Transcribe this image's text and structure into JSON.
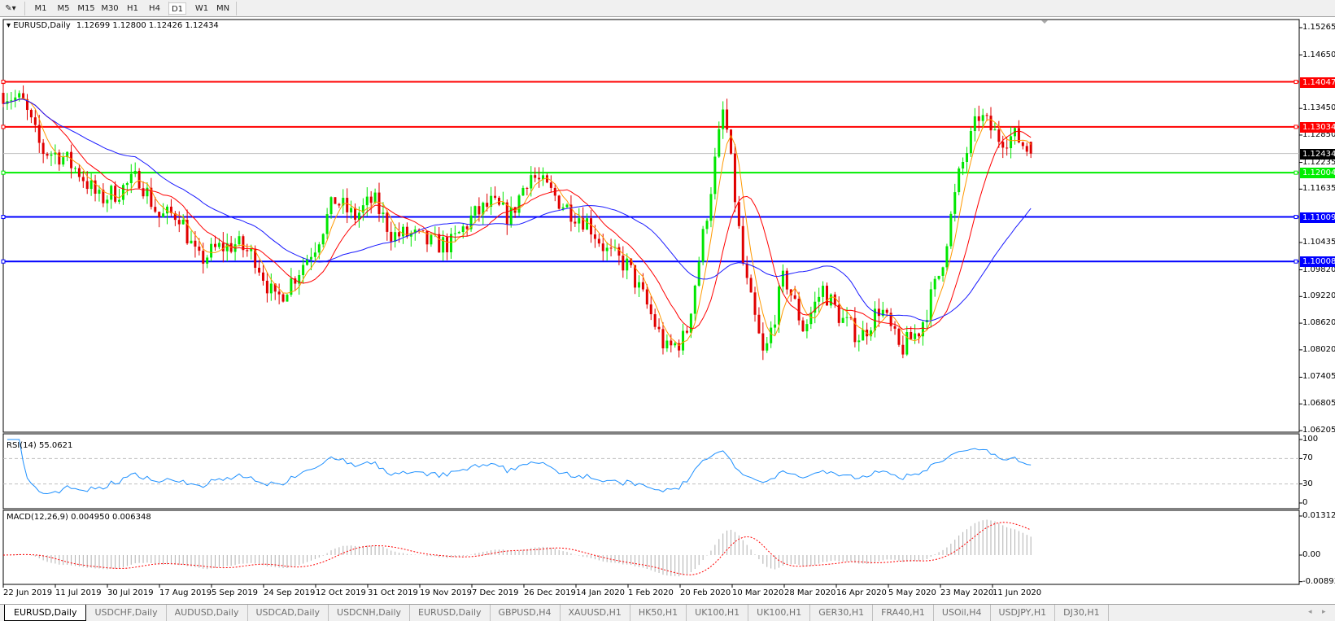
{
  "toolbar": {
    "timeframes": [
      "M1",
      "M5",
      "M15",
      "M30",
      "H1",
      "H4",
      "D1",
      "W1",
      "MN"
    ],
    "active": "D1"
  },
  "chart_header": {
    "symbol": "EURUSD,Daily",
    "ohlc": "1.12699 1.12800 1.12426 1.12434"
  },
  "colors": {
    "up_candle": "#00e600",
    "down_candle": "#e00000",
    "ma_fast": "#ff9900",
    "ma_mid": "#ff0000",
    "ma_slow": "#1a1aff",
    "rsi": "#1e90ff",
    "macd_hist": "#b0b0b0",
    "macd_signal": "#ff0000",
    "current_price": "#000000"
  },
  "chart_data": {
    "type": "candlestick",
    "symbol": "EURUSD",
    "timeframe": "Daily",
    "ylim": [
      1.06205,
      1.15265
    ],
    "price_ticks": [
      "1.15265",
      "1.14650",
      "1.13450",
      "1.12850",
      "1.12235",
      "1.11635",
      "1.10435",
      "1.09820",
      "1.09220",
      "1.08620",
      "1.08020",
      "1.07405",
      "1.06805",
      "1.06205"
    ],
    "x_ticks": [
      "22 Jun 2019",
      "11 Jul 2019",
      "30 Jul 2019",
      "17 Aug 2019",
      "5 Sep 2019",
      "24 Sep 2019",
      "12 Oct 2019",
      "31 Oct 2019",
      "19 Nov 2019",
      "7 Dec 2019",
      "26 Dec 2019",
      "14 Jan 2020",
      "1 Feb 2020",
      "20 Feb 2020",
      "10 Mar 2020",
      "28 Mar 2020",
      "16 Apr 2020",
      "5 May 2020",
      "23 May 2020",
      "11 Jun 2020"
    ],
    "approx_closes": [
      [
        "2019-06-22",
        1.138
      ],
      [
        "2019-06-29",
        1.136
      ],
      [
        "2019-07-06",
        1.125
      ],
      [
        "2019-07-13",
        1.124
      ],
      [
        "2019-07-20",
        1.12
      ],
      [
        "2019-07-27",
        1.114
      ],
      [
        "2019-08-03",
        1.116
      ],
      [
        "2019-08-10",
        1.119
      ],
      [
        "2019-08-17",
        1.11
      ],
      [
        "2019-08-24",
        1.111
      ],
      [
        "2019-08-31",
        1.1
      ],
      [
        "2019-09-07",
        1.103
      ],
      [
        "2019-09-14",
        1.104
      ],
      [
        "2019-09-21",
        1.101
      ],
      [
        "2019-09-28",
        1.091
      ],
      [
        "2019-10-05",
        1.097
      ],
      [
        "2019-10-12",
        1.104
      ],
      [
        "2019-10-19",
        1.114
      ],
      [
        "2019-10-26",
        1.11
      ],
      [
        "2019-11-02",
        1.114
      ],
      [
        "2019-11-09",
        1.106
      ],
      [
        "2019-11-16",
        1.106
      ],
      [
        "2019-11-23",
        1.104
      ],
      [
        "2019-11-30",
        1.104
      ],
      [
        "2019-12-07",
        1.11
      ],
      [
        "2019-12-14",
        1.113
      ],
      [
        "2019-12-21",
        1.11
      ],
      [
        "2019-12-28",
        1.12
      ],
      [
        "2020-01-04",
        1.116
      ],
      [
        "2020-01-11",
        1.112
      ],
      [
        "2020-01-18",
        1.109
      ],
      [
        "2020-01-25",
        1.102
      ],
      [
        "2020-02-01",
        1.099
      ],
      [
        "2020-02-08",
        1.09
      ],
      [
        "2020-02-15",
        1.08
      ],
      [
        "2020-02-22",
        1.083
      ],
      [
        "2020-02-29",
        1.108
      ],
      [
        "2020-03-07",
        1.135
      ],
      [
        "2020-03-14",
        1.098
      ],
      [
        "2020-03-21",
        1.078
      ],
      [
        "2020-03-28",
        1.097
      ],
      [
        "2020-04-04",
        1.085
      ],
      [
        "2020-04-11",
        1.094
      ],
      [
        "2020-04-18",
        1.087
      ],
      [
        "2020-04-25",
        1.083
      ],
      [
        "2020-05-02",
        1.09
      ],
      [
        "2020-05-09",
        1.08
      ],
      [
        "2020-05-16",
        1.085
      ],
      [
        "2020-05-23",
        1.098
      ],
      [
        "2020-05-30",
        1.12
      ],
      [
        "2020-06-06",
        1.133
      ],
      [
        "2020-06-13",
        1.128
      ],
      [
        "2020-06-20",
        1.128
      ],
      [
        "2020-06-25",
        1.12434
      ]
    ],
    "horizontal_levels": [
      {
        "value": "1.14047",
        "color": "#ff0000"
      },
      {
        "value": "1.13034",
        "color": "#ff0000"
      },
      {
        "value": "1.12004",
        "color": "#00ee00"
      },
      {
        "value": "1.11009",
        "color": "#0000ff"
      },
      {
        "value": "1.10008",
        "color": "#0000ff"
      }
    ],
    "current_price": "1.12434",
    "rsi": {
      "label": "RSI(14) 55.0621",
      "ticks": [
        "100",
        "70",
        "30",
        "0"
      ],
      "levels": [
        70,
        30
      ],
      "ylim": [
        0,
        100
      ]
    },
    "macd": {
      "label": "MACD(12,26,9) 0.004950 0.006348",
      "ticks": [
        "0.013121",
        "0.00",
        "-0.008933"
      ],
      "ylim": [
        -0.008933,
        0.013121
      ]
    }
  },
  "tabs": [
    "EURUSD,Daily",
    "USDCHF,Daily",
    "AUDUSD,Daily",
    "USDCAD,Daily",
    "USDCNH,Daily",
    "EURUSD,Daily",
    "GBPUSD,H4",
    "XAUUSD,H1",
    "HK50,H1",
    "UK100,H1",
    "UK100,H1",
    "GER30,H1",
    "FRA40,H1",
    "USOil,H4",
    "USDJPY,H1",
    "DJ30,H1"
  ],
  "active_tab": 0
}
